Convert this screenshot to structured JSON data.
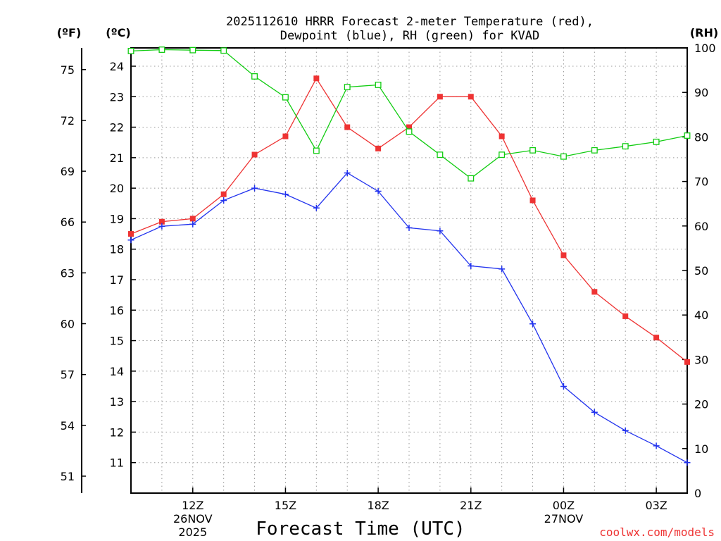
{
  "chart_data": {
    "type": "line",
    "title": [
      "2025112610 HRRR Forecast 2-meter Temperature (red),",
      "Dewpoint (blue), RH (green) for KVAD"
    ],
    "xlabel": "Forecast Time (UTC)",
    "credit": "coolwx.com/models",
    "units": {
      "f": "(ºF)",
      "c": "(ºC)",
      "rh": "(RH)"
    },
    "x_hours": [
      10,
      11,
      12,
      13,
      14,
      15,
      16,
      17,
      18,
      19,
      20,
      21,
      22,
      23,
      24,
      25,
      26,
      27,
      28
    ],
    "xlim": [
      10,
      28
    ],
    "ylim_c": [
      10,
      24.6
    ],
    "ylim_rh": [
      0,
      100
    ],
    "x_ticks": [
      {
        "hour": 12,
        "lines": [
          "12Z",
          "26NOV",
          "2025"
        ]
      },
      {
        "hour": 15,
        "lines": [
          "15Z"
        ]
      },
      {
        "hour": 18,
        "lines": [
          "18Z"
        ]
      },
      {
        "hour": 21,
        "lines": [
          "21Z"
        ]
      },
      {
        "hour": 24,
        "lines": [
          "00Z",
          "27NOV"
        ]
      },
      {
        "hour": 27,
        "lines": [
          "03Z"
        ]
      }
    ],
    "c_ticks": [
      11,
      12,
      13,
      14,
      15,
      16,
      17,
      18,
      19,
      20,
      21,
      22,
      23,
      24
    ],
    "f_ticks": [
      51,
      54,
      57,
      60,
      63,
      66,
      69,
      72,
      75
    ],
    "rh_ticks": [
      0,
      10,
      20,
      30,
      40,
      50,
      60,
      70,
      80,
      90,
      100
    ],
    "colors": {
      "temperature": "#ee3333",
      "dewpoint": "#2233ee",
      "rh": "#11cc11",
      "grid": "#999999"
    },
    "series": [
      {
        "name": "Temperature",
        "unit": "C",
        "marker": "filled-square",
        "values": [
          18.5,
          18.9,
          19.0,
          19.8,
          21.1,
          21.7,
          23.6,
          22.0,
          21.3,
          22.0,
          23.0,
          23.0,
          21.7,
          19.6,
          17.8,
          16.6,
          15.8,
          15.1,
          14.3
        ]
      },
      {
        "name": "Dewpoint",
        "unit": "C",
        "marker": "plus",
        "values": [
          18.3,
          18.75,
          18.82,
          19.6,
          20.0,
          19.8,
          19.35,
          20.5,
          19.9,
          18.7,
          18.6,
          17.45,
          17.35,
          15.55,
          13.5,
          12.65,
          12.05,
          11.55,
          11.0
        ]
      },
      {
        "name": "RH",
        "unit": "%",
        "marker": "open-square",
        "values": [
          99.3,
          99.6,
          99.5,
          99.4,
          93.6,
          88.9,
          76.9,
          91.2,
          91.7,
          81.2,
          76.0,
          70.7,
          76.0,
          77.0,
          75.6,
          77.0,
          77.9,
          78.9,
          80.3
        ]
      }
    ]
  }
}
